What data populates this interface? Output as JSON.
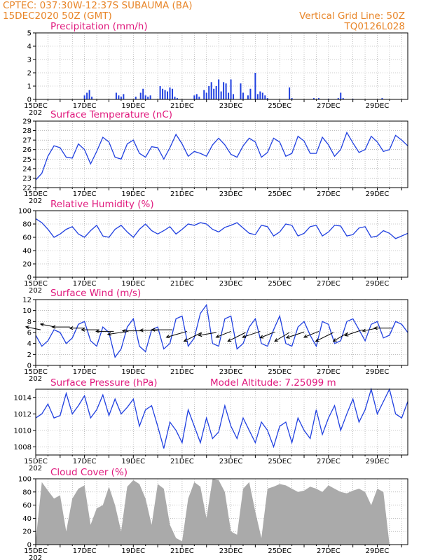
{
  "header": {
    "line1_left": "CPTEC:   037:30W-12:37S  SUBAUMA (BA)",
    "line2_left": "15DEC2020 50Z (GMT)",
    "line1_right": "Vertical Grid Line: 50Z",
    "line2_right": "TQ0126L028"
  },
  "x_axis": {
    "tick_labels": [
      "15DEC",
      "17DEC",
      "19DEC",
      "21DEC",
      "23DEC",
      "25DEC",
      "27DEC",
      "29DEC"
    ],
    "year_fragment": "202",
    "range_days": [
      0,
      15.25
    ]
  },
  "colors": {
    "line": "#2040e0",
    "bar": "#2040e0",
    "cloud": "#aaaaaa",
    "grid": "#999999",
    "title": "#e0197d",
    "header": "#e8862a"
  },
  "chart_data": [
    {
      "type": "bar",
      "title": "Precipitation (mm/h)",
      "ylim": [
        0,
        5
      ],
      "yticks": [
        0,
        1,
        2,
        3,
        4,
        5
      ],
      "x_days": [
        2.0,
        2.1,
        2.2,
        2.3,
        3.3,
        3.4,
        3.5,
        3.6,
        4.1,
        4.3,
        4.4,
        4.5,
        4.6,
        4.7,
        5.1,
        5.2,
        5.3,
        5.4,
        5.5,
        5.6,
        5.7,
        5.8,
        6.5,
        6.6,
        6.7,
        6.9,
        7.0,
        7.1,
        7.2,
        7.3,
        7.4,
        7.5,
        7.6,
        7.7,
        7.8,
        7.9,
        8.0,
        8.1,
        8.4,
        8.5,
        8.7,
        8.8,
        9.0,
        9.1,
        9.2,
        9.3,
        9.4,
        9.5,
        10.4,
        10.5,
        11.4,
        11.6,
        12.0,
        12.4,
        12.5,
        12.6,
        13.0,
        14.2
      ],
      "values": [
        0.3,
        0.5,
        0.7,
        0.2,
        0.5,
        0.3,
        0.2,
        0.4,
        0.2,
        0.5,
        0.8,
        0.3,
        0.2,
        0.3,
        1.0,
        0.8,
        0.7,
        0.6,
        0.9,
        0.8,
        0.2,
        0.1,
        0.3,
        0.4,
        0.2,
        0.7,
        0.5,
        1.0,
        1.3,
        0.8,
        1.0,
        1.5,
        0.6,
        1.3,
        1.2,
        0.5,
        1.5,
        0.4,
        1.2,
        0.5,
        0.3,
        0.8,
        2.0,
        0.4,
        0.6,
        0.5,
        0.3,
        0.1,
        0.9,
        0.1,
        0.1,
        0.1,
        0.05,
        0.1,
        0.5,
        0.1,
        0.05,
        0.1
      ]
    },
    {
      "type": "line",
      "title": "Surface Temperature (nC)",
      "ylim": [
        22,
        29
      ],
      "yticks": [
        22,
        23,
        24,
        25,
        26,
        27,
        28,
        29
      ],
      "x_days": [
        0,
        0.25,
        0.5,
        0.75,
        1,
        1.25,
        1.5,
        1.75,
        2,
        2.25,
        2.5,
        2.75,
        3,
        3.25,
        3.5,
        3.75,
        4,
        4.25,
        4.5,
        4.75,
        5,
        5.25,
        5.5,
        5.75,
        6,
        6.25,
        6.5,
        6.75,
        7,
        7.25,
        7.5,
        7.75,
        8,
        8.25,
        8.5,
        8.75,
        9,
        9.25,
        9.5,
        9.75,
        10,
        10.25,
        10.5,
        10.75,
        11,
        11.25,
        11.5,
        11.75,
        12,
        12.25,
        12.5,
        12.75,
        13,
        13.25,
        13.5,
        13.75,
        14,
        14.25,
        14.5,
        14.75,
        15,
        15.25
      ],
      "values": [
        22.8,
        23.5,
        25.3,
        26.4,
        26.2,
        25.2,
        25.1,
        26.6,
        26.0,
        24.5,
        25.8,
        27.3,
        26.8,
        25.2,
        25.0,
        26.6,
        27.0,
        25.6,
        25.2,
        26.3,
        26.2,
        25.0,
        26.2,
        27.6,
        26.6,
        25.3,
        25.8,
        25.6,
        25.3,
        26.5,
        27.2,
        26.5,
        25.5,
        25.2,
        26.4,
        27.2,
        26.8,
        25.2,
        25.7,
        27.2,
        26.8,
        25.3,
        25.6,
        27.4,
        26.9,
        25.6,
        25.6,
        27.3,
        26.5,
        25.3,
        26.0,
        27.8,
        26.7,
        25.7,
        26.0,
        27.4,
        26.8,
        25.8,
        26.0,
        27.5,
        27.0,
        26.4
      ]
    },
    {
      "type": "line",
      "title": "Relative Humidity (%)",
      "ylim": [
        0,
        100
      ],
      "yticks": [
        0,
        20,
        40,
        60,
        80,
        100
      ],
      "x_days": [
        0,
        0.25,
        0.5,
        0.75,
        1,
        1.25,
        1.5,
        1.75,
        2,
        2.25,
        2.5,
        2.75,
        3,
        3.25,
        3.5,
        3.75,
        4,
        4.25,
        4.5,
        4.75,
        5,
        5.25,
        5.5,
        5.75,
        6,
        6.25,
        6.5,
        6.75,
        7,
        7.25,
        7.5,
        7.75,
        8,
        8.25,
        8.5,
        8.75,
        9,
        9.25,
        9.5,
        9.75,
        10,
        10.25,
        10.5,
        10.75,
        11,
        11.25,
        11.5,
        11.75,
        12,
        12.25,
        12.5,
        12.75,
        13,
        13.25,
        13.5,
        13.75,
        14,
        14.25,
        14.5,
        14.75,
        15,
        15.25
      ],
      "values": [
        88,
        82,
        72,
        60,
        65,
        72,
        76,
        65,
        60,
        70,
        78,
        62,
        60,
        72,
        78,
        68,
        60,
        72,
        80,
        70,
        65,
        70,
        76,
        65,
        72,
        80,
        78,
        82,
        80,
        72,
        68,
        75,
        78,
        82,
        74,
        66,
        64,
        78,
        76,
        62,
        68,
        80,
        78,
        62,
        66,
        76,
        78,
        62,
        68,
        78,
        77,
        62,
        64,
        74,
        76,
        60,
        62,
        70,
        66,
        58,
        62,
        66
      ]
    },
    {
      "type": "line",
      "title": "Surface Wind (m/s)",
      "ylim": [
        0,
        12
      ],
      "yticks": [
        0,
        2,
        4,
        6,
        8,
        10,
        12
      ],
      "x_days": [
        0,
        0.25,
        0.5,
        0.75,
        1,
        1.25,
        1.5,
        1.75,
        2,
        2.25,
        2.5,
        2.75,
        3,
        3.25,
        3.5,
        3.75,
        4,
        4.25,
        4.5,
        4.75,
        5,
        5.25,
        5.5,
        5.75,
        6,
        6.25,
        6.5,
        6.75,
        7,
        7.25,
        7.5,
        7.75,
        8,
        8.25,
        8.5,
        8.75,
        9,
        9.25,
        9.5,
        9.75,
        10,
        10.25,
        10.5,
        10.75,
        11,
        11.25,
        11.5,
        11.75,
        12,
        12.25,
        12.5,
        12.75,
        13,
        13.25,
        13.5,
        13.75,
        14,
        14.25,
        14.5,
        14.75,
        15,
        15.25
      ],
      "values": [
        5.5,
        3.5,
        4.5,
        6.5,
        6.0,
        4.0,
        5.0,
        7.5,
        8.0,
        4.5,
        3.5,
        7.0,
        6.0,
        1.5,
        3.0,
        7.0,
        8.5,
        3.5,
        2.5,
        6.5,
        7.0,
        3.0,
        4.0,
        8.5,
        9.0,
        3.5,
        5.0,
        9.5,
        11.0,
        4.0,
        3.5,
        8.5,
        9.0,
        3.0,
        4.0,
        7.0,
        8.5,
        4.0,
        3.5,
        6.5,
        9.0,
        4.0,
        3.5,
        7.0,
        8.0,
        5.5,
        3.5,
        8.0,
        7.5,
        4.0,
        4.5,
        8.0,
        8.5,
        6.5,
        4.5,
        7.5,
        8.0,
        5.0,
        5.5,
        8.0,
        7.5,
        6.0
      ],
      "barb_x_days": [
        0.2,
        0.8,
        1.4,
        2.0,
        2.6,
        3.2,
        3.8,
        4.4,
        5.0,
        5.6,
        6.2,
        6.8,
        7.4,
        8.0,
        8.6,
        9.2,
        9.8,
        10.4,
        11.0,
        11.6,
        12.2,
        12.8,
        13.4,
        14.0,
        14.6
      ],
      "barb_u": [
        -5,
        -5,
        -6,
        -5,
        -6,
        -6,
        -7,
        -7,
        -6,
        -7,
        -7,
        -6,
        -6,
        -5,
        -6,
        -6,
        -5,
        -5,
        -6,
        -5,
        -6,
        -5,
        -6,
        -5,
        -6
      ],
      "barb_v": [
        1,
        1,
        0,
        0,
        0,
        0,
        -1,
        0,
        0,
        0,
        -2,
        -3,
        -1,
        -2,
        -3,
        -2,
        -2,
        -3,
        -2,
        -2,
        -3,
        -3,
        -2,
        -1,
        0
      ],
      "barb_y": [
        6.5,
        7.0,
        7.0,
        6.8,
        6.5,
        6.2,
        6.2,
        6.3,
        6.4,
        6.5,
        6.2,
        6.0,
        6.0,
        6.2,
        6.0,
        6.2,
        6.1,
        6.0,
        6.1,
        6.2,
        6.0,
        6.0,
        6.5,
        6.8,
        6.8
      ]
    },
    {
      "type": "line",
      "title": "Surface Pressure (hPa)",
      "annotation": "Model Altitude: 7.25099 m",
      "ylim": [
        1007,
        1015
      ],
      "yticks": [
        1008,
        1010,
        1012,
        1014
      ],
      "x_days": [
        0,
        0.25,
        0.5,
        0.75,
        1,
        1.25,
        1.5,
        1.75,
        2,
        2.25,
        2.5,
        2.75,
        3,
        3.25,
        3.5,
        3.75,
        4,
        4.25,
        4.5,
        4.75,
        5,
        5.25,
        5.5,
        5.75,
        6,
        6.25,
        6.5,
        6.75,
        7,
        7.25,
        7.5,
        7.75,
        8,
        8.25,
        8.5,
        8.75,
        9,
        9.25,
        9.5,
        9.75,
        10,
        10.25,
        10.5,
        10.75,
        11,
        11.25,
        11.5,
        11.75,
        12,
        12.25,
        12.5,
        12.75,
        13,
        13.25,
        13.5,
        13.75,
        14,
        14.25,
        14.5,
        14.75,
        15,
        15.25
      ],
      "values": [
        1011.5,
        1012.0,
        1013.2,
        1011.5,
        1011.8,
        1014.5,
        1012.0,
        1013.0,
        1014.2,
        1011.5,
        1012.5,
        1014.3,
        1011.8,
        1013.8,
        1012.0,
        1012.8,
        1013.8,
        1010.5,
        1012.5,
        1013.0,
        1010.5,
        1007.8,
        1011.0,
        1010.0,
        1008.5,
        1012.5,
        1010.5,
        1008.5,
        1011.5,
        1009.0,
        1009.8,
        1013.0,
        1010.5,
        1009.0,
        1011.5,
        1010.0,
        1008.5,
        1011.0,
        1010.0,
        1008.0,
        1010.5,
        1011.0,
        1008.5,
        1011.5,
        1010.0,
        1009.0,
        1012.5,
        1009.5,
        1011.5,
        1013.0,
        1010.0,
        1012.0,
        1013.8,
        1011.0,
        1012.5,
        1015.0,
        1012.0,
        1013.5,
        1015.0,
        1012.0,
        1011.5,
        1013.5
      ]
    },
    {
      "type": "area",
      "title": "Cloud Cover (%)",
      "ylim": [
        0,
        100
      ],
      "yticks": [
        0,
        20,
        40,
        60,
        80,
        100
      ],
      "x_days": [
        0,
        0.25,
        0.5,
        0.75,
        1,
        1.25,
        1.5,
        1.75,
        2,
        2.25,
        2.5,
        2.75,
        3,
        3.25,
        3.5,
        3.75,
        4,
        4.25,
        4.5,
        4.75,
        5,
        5.25,
        5.5,
        5.75,
        6,
        6.25,
        6.5,
        6.75,
        7,
        7.25,
        7.5,
        7.75,
        8,
        8.25,
        8.5,
        8.75,
        9,
        9.25,
        9.5,
        9.75,
        10,
        10.25,
        10.5,
        10.75,
        11,
        11.25,
        11.5,
        11.75,
        12,
        12.25,
        12.5,
        12.75,
        13,
        13.25,
        13.5,
        13.75,
        14,
        14.25,
        14.5,
        14.75,
        15,
        15.25
      ],
      "values": [
        5,
        95,
        82,
        70,
        75,
        20,
        70,
        85,
        90,
        30,
        55,
        60,
        88,
        60,
        20,
        88,
        98,
        92,
        70,
        30,
        92,
        85,
        30,
        10,
        5,
        70,
        95,
        88,
        40,
        100,
        98,
        80,
        20,
        15,
        85,
        95,
        50,
        10,
        85,
        88,
        92,
        90,
        85,
        80,
        82,
        88,
        85,
        80,
        90,
        85,
        80,
        78,
        82,
        85,
        80,
        60,
        85,
        80,
        0,
        0,
        0,
        0
      ]
    }
  ]
}
